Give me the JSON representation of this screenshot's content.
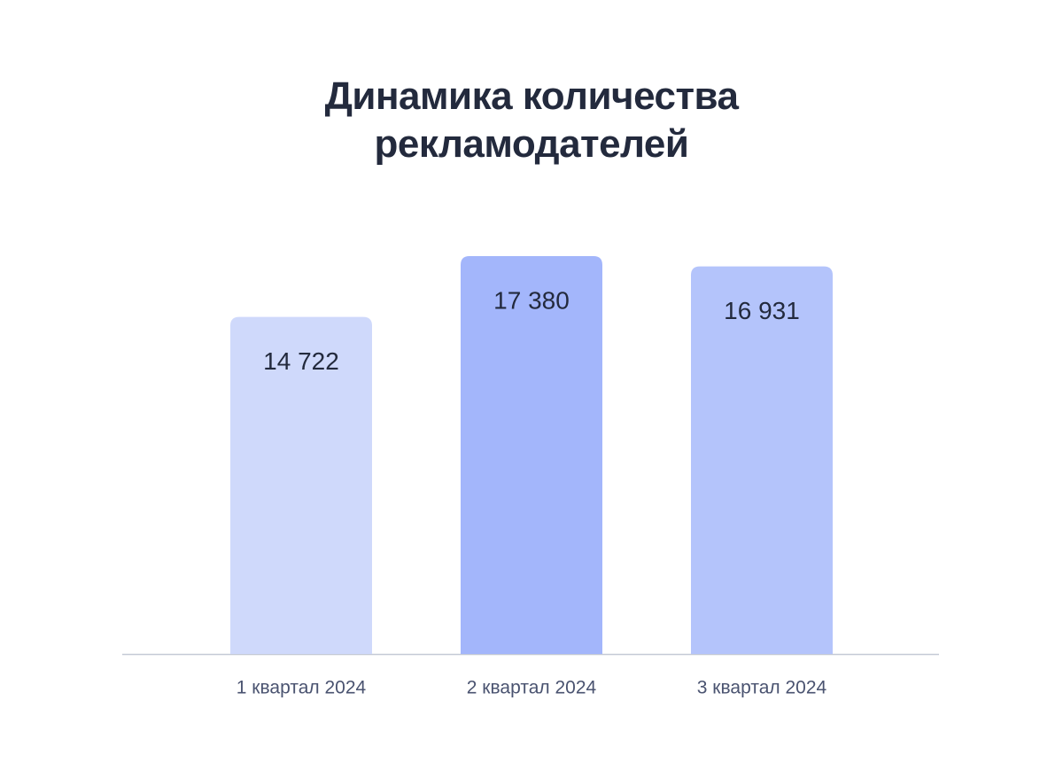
{
  "chart_data": {
    "type": "bar",
    "title": "Динамика количества рекламодателей",
    "categories": [
      "1 квартал 2024",
      "2 квартал 2024",
      "3 квартал 2024"
    ],
    "values": [
      14722,
      17380,
      16931
    ],
    "value_labels": [
      "14 722",
      "17 380",
      "16 931"
    ],
    "colors": [
      "#cfd9fb",
      "#a3b6fb",
      "#b4c4fb"
    ]
  }
}
